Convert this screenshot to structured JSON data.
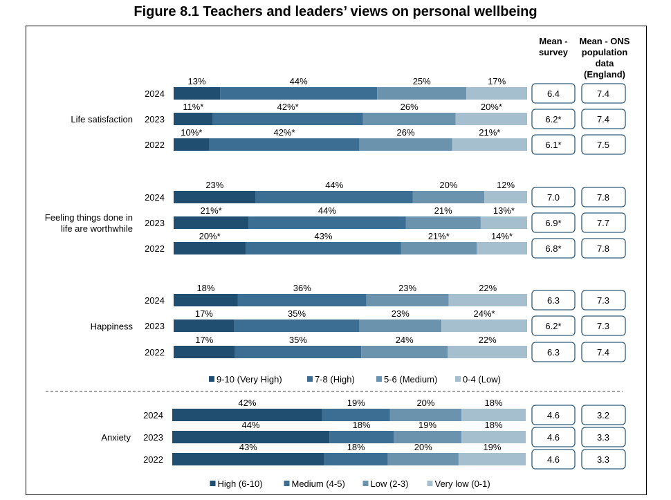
{
  "title": "Figure 8.1 Teachers and leaders’ views on personal wellbeing",
  "headers": {
    "mean_survey": "Mean - survey",
    "mean_ons": "Mean - ONS population data (England)"
  },
  "colors": {
    "very_dark": "#1f4e70",
    "dark": "#3c6d92",
    "medium": "#6b93ae",
    "light": "#a6bfcf"
  },
  "chart_data": [
    {
      "type": "bar",
      "orientation": "horizontal",
      "stacked": true,
      "normalized": true,
      "legend": [
        "9-10 (Very High)",
        "7-8 (High)",
        "5-6 (Medium)",
        "0-4 (Low)"
      ],
      "legend_position": "bottom",
      "groups": [
        {
          "label": "Life satisfaction",
          "rows": [
            {
              "year": "2024",
              "values": [
                13,
                44,
                25,
                17
              ],
              "labels": [
                "13%",
                "44%",
                "25%",
                "17%"
              ],
              "mean_survey": "6.4",
              "mean_ons": "7.4"
            },
            {
              "year": "2023",
              "values": [
                11,
                42,
                26,
                20
              ],
              "labels": [
                "11%*",
                "42%*",
                "26%",
                "20%*"
              ],
              "mean_survey": "6.2*",
              "mean_ons": "7.4"
            },
            {
              "year": "2022",
              "values": [
                10,
                42,
                26,
                21
              ],
              "labels": [
                "10%*",
                "42%*",
                "26%",
                "21%*"
              ],
              "mean_survey": "6.1*",
              "mean_ons": "7.5"
            }
          ]
        },
        {
          "label": "Feeling things done in life are worthwhile",
          "rows": [
            {
              "year": "2024",
              "values": [
                23,
                44,
                20,
                12
              ],
              "labels": [
                "23%",
                "44%",
                "20%",
                "12%"
              ],
              "mean_survey": "7.0",
              "mean_ons": "7.8"
            },
            {
              "year": "2023",
              "values": [
                21,
                44,
                21,
                13
              ],
              "labels": [
                "21%*",
                "44%",
                "21%",
                "13%*"
              ],
              "mean_survey": "6.9*",
              "mean_ons": "7.7"
            },
            {
              "year": "2022",
              "values": [
                20,
                43,
                21,
                14
              ],
              "labels": [
                "20%*",
                "43%",
                "21%*",
                "14%*"
              ],
              "mean_survey": "6.8*",
              "mean_ons": "7.8"
            }
          ]
        },
        {
          "label": "Happiness",
          "rows": [
            {
              "year": "2024",
              "values": [
                18,
                36,
                23,
                22
              ],
              "labels": [
                "18%",
                "36%",
                "23%",
                "22%"
              ],
              "mean_survey": "6.3",
              "mean_ons": "7.3"
            },
            {
              "year": "2023",
              "values": [
                17,
                35,
                23,
                24
              ],
              "labels": [
                "17%",
                "35%",
                "23%",
                "24%*"
              ],
              "mean_survey": "6.2*",
              "mean_ons": "7.3"
            },
            {
              "year": "2022",
              "values": [
                17,
                35,
                24,
                22
              ],
              "labels": [
                "17%",
                "35%",
                "24%",
                "22%"
              ],
              "mean_survey": "6.3",
              "mean_ons": "7.4"
            }
          ]
        }
      ]
    },
    {
      "type": "bar",
      "orientation": "horizontal",
      "stacked": true,
      "normalized": true,
      "legend": [
        "High (6-10)",
        "Medium (4-5)",
        "Low (2-3)",
        "Very low (0-1)"
      ],
      "legend_position": "bottom",
      "groups": [
        {
          "label": "Anxiety",
          "rows": [
            {
              "year": "2024",
              "values": [
                42,
                19,
                20,
                18
              ],
              "labels": [
                "42%",
                "19%",
                "20%",
                "18%"
              ],
              "mean_survey": "4.6",
              "mean_ons": "3.2"
            },
            {
              "year": "2023",
              "values": [
                44,
                18,
                19,
                18
              ],
              "labels": [
                "44%",
                "18%",
                "19%",
                "18%"
              ],
              "mean_survey": "4.6",
              "mean_ons": "3.3"
            },
            {
              "year": "2022",
              "values": [
                43,
                18,
                20,
                19
              ],
              "labels": [
                "43%",
                "18%",
                "20%",
                "19%"
              ],
              "mean_survey": "4.6",
              "mean_ons": "3.3"
            }
          ]
        }
      ]
    }
  ]
}
